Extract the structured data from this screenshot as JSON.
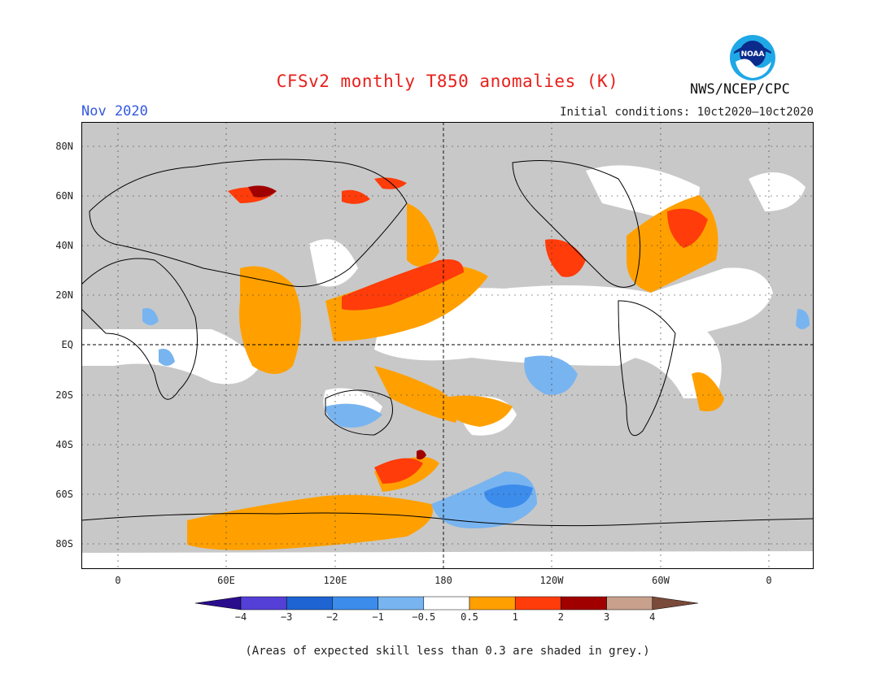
{
  "title": "CFSv2 monthly T850 anomalies (K)",
  "period": "Nov 2020",
  "initial_conditions": "Initial conditions: 10ct2020–10ct2020",
  "agency": "NWS/NCEP/CPC",
  "logo_text": "NOAA",
  "lat_labels": [
    "80N",
    "60N",
    "40N",
    "20N",
    "EQ",
    "20S",
    "40S",
    "60S",
    "80S"
  ],
  "lon_labels": [
    "0",
    "60E",
    "120E",
    "180",
    "120W",
    "60W",
    "0"
  ],
  "colorbar": {
    "ticks": [
      "−4",
      "−3",
      "−2",
      "−1",
      "−0.5",
      "0.5",
      "1",
      "2",
      "3",
      "4"
    ],
    "colors": [
      "#2a0d8c",
      "#5440d6",
      "#1e64d2",
      "#3c8cec",
      "#78b4f0",
      "#ffffff",
      "#ffa000",
      "#ff3c0a",
      "#a00000",
      "#c8a08c",
      "#7a4a3a"
    ]
  },
  "footnote": "(Areas of expected skill less than 0.3 are shaded in grey.)",
  "colors": {
    "grey_low_skill": "#c8c8c8",
    "title_red": "#e8201c",
    "period_blue": "#3358e0"
  }
}
